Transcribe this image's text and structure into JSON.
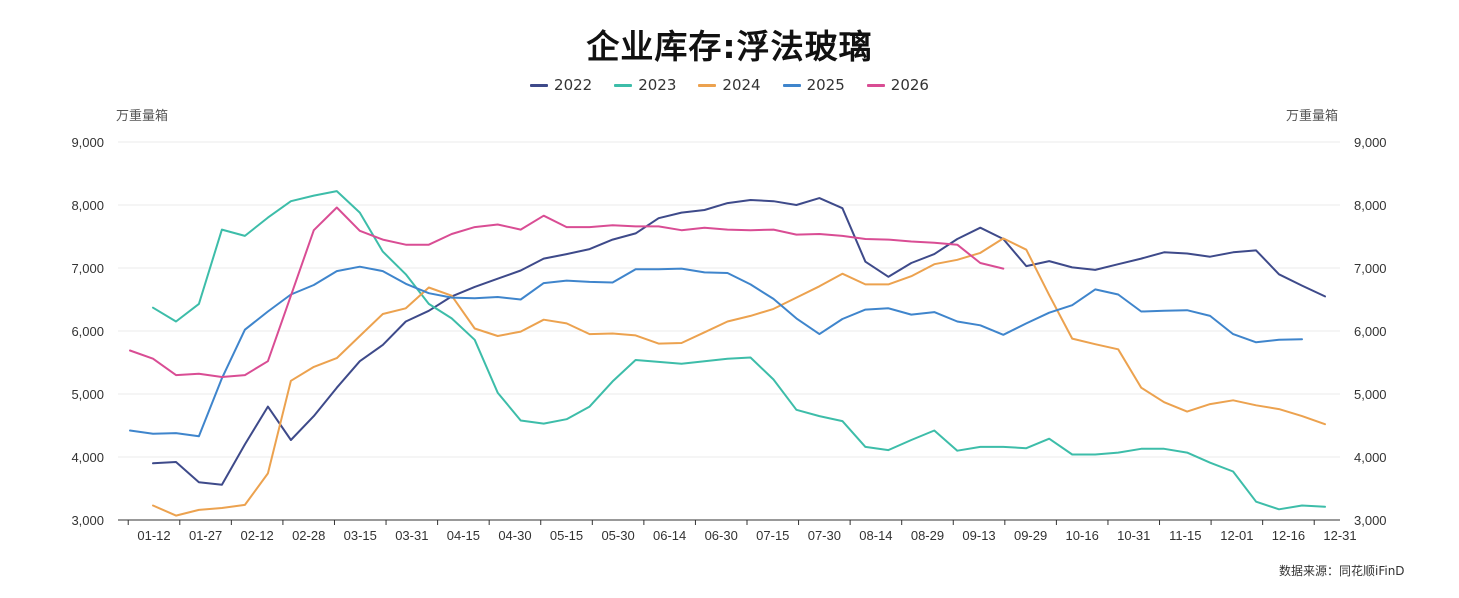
{
  "chart_data": {
    "type": "line",
    "title": "企业库存:浮法玻璃",
    "y_unit_left": "万重量箱",
    "y_unit_right": "万重量箱",
    "ylim": [
      3000,
      9000
    ],
    "yticks": [
      "3,000",
      "4,000",
      "5,000",
      "6,000",
      "7,000",
      "8,000",
      "9,000"
    ],
    "ytick_values": [
      3000,
      4000,
      5000,
      6000,
      7000,
      8000,
      9000
    ],
    "x_tick_labels": [
      "01-12",
      "01-27",
      "02-12",
      "02-28",
      "03-15",
      "03-31",
      "04-15",
      "04-30",
      "05-15",
      "05-30",
      "06-14",
      "06-30",
      "07-15",
      "07-30",
      "08-14",
      "08-29",
      "09-13",
      "09-29",
      "10-16",
      "10-31",
      "11-15",
      "12-01",
      "12-16",
      "12-31"
    ],
    "grid": "horizontal",
    "legend_position": "top-center",
    "series": [
      {
        "name": "2022",
        "color": "#3e4a8a",
        "values": [
          null,
          3900,
          3920,
          3600,
          3560,
          4200,
          4800,
          4270,
          4650,
          5100,
          5520,
          5780,
          6150,
          6320,
          6550,
          6700,
          6830,
          6960,
          7150,
          7220,
          7300,
          7450,
          7550,
          7790,
          7880,
          7920,
          8030,
          8080,
          8060,
          8000,
          8110,
          7950,
          7100,
          6860,
          7080,
          7220,
          7460,
          7640,
          7460,
          7030,
          7110,
          7010,
          6970,
          7060,
          7150,
          7250,
          7230,
          7180,
          7250,
          7280,
          6900,
          6720,
          6550
        ]
      },
      {
        "name": "2023",
        "color": "#3dbda9",
        "values": [
          null,
          6370,
          6150,
          6430,
          7610,
          7510,
          7800,
          8060,
          8150,
          8220,
          7880,
          7260,
          6900,
          6430,
          6200,
          5860,
          5020,
          4580,
          4530,
          4600,
          4800,
          5200,
          5540,
          5510,
          5480,
          5520,
          5560,
          5580,
          5230,
          4750,
          4650,
          4570,
          4160,
          4110,
          4270,
          4420,
          4100,
          4160,
          4160,
          4140,
          4290,
          4040,
          4040,
          4070,
          4130,
          4130,
          4070,
          3910,
          3770,
          3290,
          3170,
          3230,
          3210
        ]
      },
      {
        "name": "2024",
        "color": "#eca24f",
        "values": [
          null,
          3230,
          3070,
          3160,
          3190,
          3240,
          3740,
          5210,
          5430,
          5570,
          5920,
          6270,
          6360,
          6690,
          6560,
          6040,
          5920,
          5990,
          6180,
          6120,
          5950,
          5960,
          5930,
          5800,
          5810,
          5980,
          6150,
          6240,
          6350,
          6530,
          6710,
          6910,
          6740,
          6740,
          6870,
          7060,
          7130,
          7240,
          7470,
          7290,
          6570,
          5880,
          5790,
          5710,
          5100,
          4870,
          4720,
          4840,
          4900,
          4820,
          4760,
          4650,
          4520
        ]
      },
      {
        "name": "2025",
        "color": "#3f85cc",
        "values": [
          4420,
          4370,
          4380,
          4330,
          5250,
          6020,
          6310,
          6580,
          6730,
          6950,
          7020,
          6950,
          6750,
          6600,
          6530,
          6520,
          6540,
          6500,
          6760,
          6800,
          6780,
          6770,
          6980,
          6980,
          6990,
          6930,
          6920,
          6740,
          6510,
          6200,
          5950,
          6190,
          6340,
          6360,
          6260,
          6300,
          6150,
          6090,
          5940,
          6120,
          6290,
          6410,
          6660,
          6580,
          6310,
          6320,
          6330,
          6240,
          5950,
          5820,
          5860,
          5870,
          null
        ]
      },
      {
        "name": "2026",
        "color": "#d94d94",
        "values": [
          5690,
          5560,
          5300,
          5320,
          5270,
          5300,
          5520,
          6560,
          7600,
          7960,
          7590,
          7450,
          7370,
          7370,
          7540,
          7650,
          7690,
          7610,
          7830,
          7650,
          7650,
          7680,
          7660,
          7660,
          7600,
          7640,
          7610,
          7600,
          7610,
          7530,
          7540,
          7510,
          7460,
          7450,
          7420,
          7400,
          7370,
          7080,
          6990,
          null,
          null,
          null,
          null,
          null,
          null,
          null,
          null,
          null,
          null,
          null,
          null,
          null,
          null
        ]
      }
    ]
  },
  "source_note": "数据来源：同花顺iFinD"
}
